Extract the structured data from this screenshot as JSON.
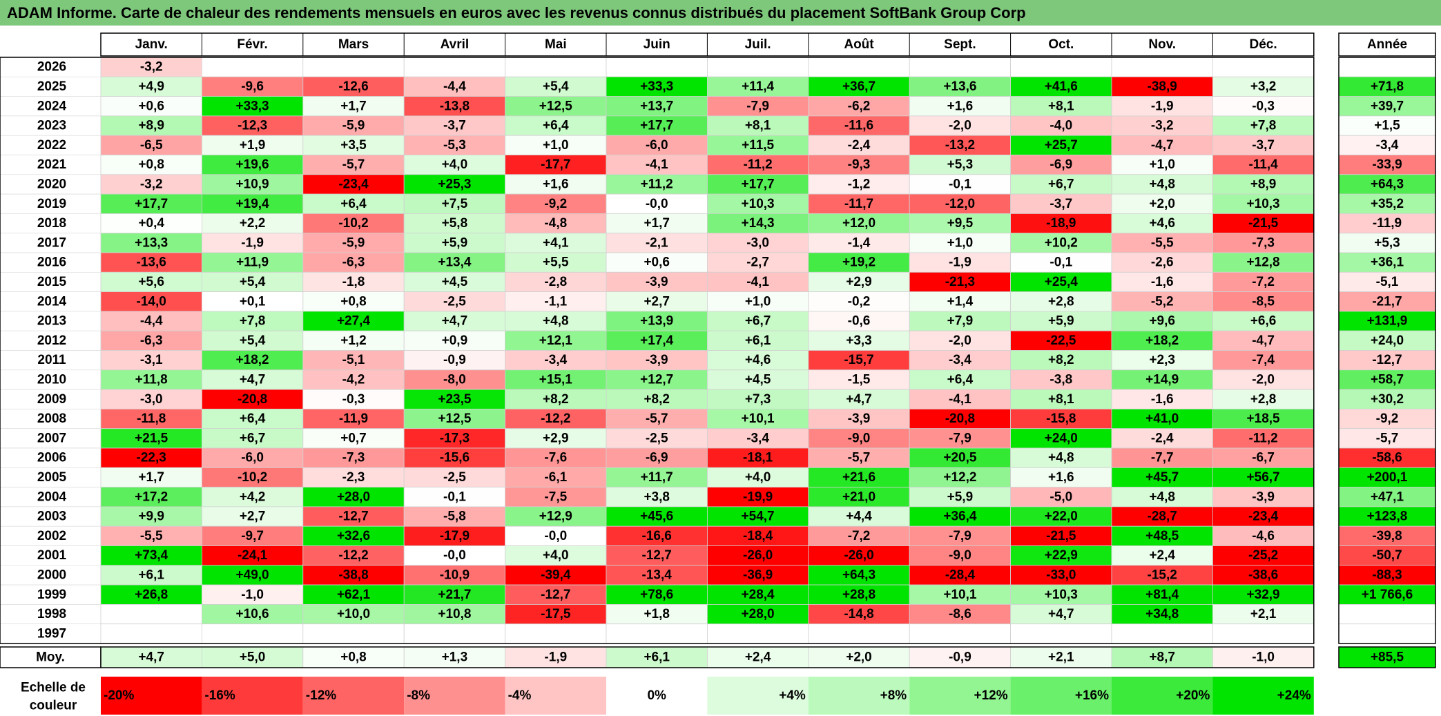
{
  "title": "ADAM Informe. Carte de chaleur des rendements mensuels en euros avec les revenus connus distribués du placement SoftBank Group Corp",
  "chart_data": {
    "type": "heatmap",
    "months": [
      "Janv.",
      "Févr.",
      "Mars",
      "Avril",
      "Mai",
      "Juin",
      "Juil.",
      "Août",
      "Sept.",
      "Oct.",
      "Nov.",
      "Déc."
    ],
    "year_header": "Année",
    "avg_label": "Moy.",
    "scale_label": [
      "Echelle de",
      "couleur"
    ],
    "rows": [
      {
        "year": "2026",
        "values": [
          "-3,2",
          "",
          "",
          "",
          "",
          "",
          "",
          "",
          "",
          "",
          "",
          ""
        ],
        "annual": ""
      },
      {
        "year": "2025",
        "values": [
          "+4,9",
          "-9,6",
          "-12,6",
          "-4,4",
          "+5,4",
          "+33,3",
          "+11,4",
          "+36,7",
          "+13,6",
          "+41,6",
          "-38,9",
          "+3,2"
        ],
        "annual": "+71,8"
      },
      {
        "year": "2024",
        "values": [
          "+0,6",
          "+33,3",
          "+1,7",
          "-13,8",
          "+12,5",
          "+13,7",
          "-7,9",
          "-6,2",
          "+1,6",
          "+8,1",
          "-1,9",
          "-0,3"
        ],
        "annual": "+39,7"
      },
      {
        "year": "2023",
        "values": [
          "+8,9",
          "-12,3",
          "-5,9",
          "-3,7",
          "+6,4",
          "+17,7",
          "+8,1",
          "-11,6",
          "-2,0",
          "-4,0",
          "-3,2",
          "+7,8"
        ],
        "annual": "+1,5"
      },
      {
        "year": "2022",
        "values": [
          "-6,5",
          "+1,9",
          "+3,5",
          "-5,3",
          "+1,0",
          "-6,0",
          "+11,5",
          "-2,4",
          "-13,2",
          "+25,7",
          "-4,7",
          "-3,7"
        ],
        "annual": "-3,4"
      },
      {
        "year": "2021",
        "values": [
          "+0,8",
          "+19,6",
          "-5,7",
          "+4,0",
          "-17,7",
          "-4,1",
          "-11,2",
          "-9,3",
          "+5,3",
          "-6,9",
          "+1,0",
          "-11,4"
        ],
        "annual": "-33,9"
      },
      {
        "year": "2020",
        "values": [
          "-3,2",
          "+10,9",
          "-23,4",
          "+25,3",
          "+1,6",
          "+11,2",
          "+17,7",
          "-1,2",
          "-0,1",
          "+6,7",
          "+4,8",
          "+8,9"
        ],
        "annual": "+64,3"
      },
      {
        "year": "2019",
        "values": [
          "+17,7",
          "+19,4",
          "+6,4",
          "+7,5",
          "-9,2",
          "-0,0",
          "+10,3",
          "-11,7",
          "-12,0",
          "-3,7",
          "+2,0",
          "+10,3"
        ],
        "annual": "+35,2"
      },
      {
        "year": "2018",
        "values": [
          "+0,4",
          "+2,2",
          "-10,2",
          "+5,8",
          "-4,8",
          "+1,7",
          "+14,3",
          "+12,0",
          "+9,5",
          "-18,9",
          "+4,6",
          "-21,5"
        ],
        "annual": "-11,9"
      },
      {
        "year": "2017",
        "values": [
          "+13,3",
          "-1,9",
          "-5,9",
          "+5,9",
          "+4,1",
          "-2,1",
          "-3,0",
          "-1,4",
          "+1,0",
          "+10,2",
          "-5,5",
          "-7,3"
        ],
        "annual": "+5,3"
      },
      {
        "year": "2016",
        "values": [
          "-13,6",
          "+11,9",
          "-6,3",
          "+13,4",
          "+5,5",
          "+0,6",
          "-2,7",
          "+19,2",
          "-1,9",
          "-0,1",
          "-2,6",
          "+12,8"
        ],
        "annual": "+36,1"
      },
      {
        "year": "2015",
        "values": [
          "+5,6",
          "+5,4",
          "-1,8",
          "+4,5",
          "-2,8",
          "-3,9",
          "-4,1",
          "+2,9",
          "-21,3",
          "+25,4",
          "-1,6",
          "-7,2"
        ],
        "annual": "-5,1"
      },
      {
        "year": "2014",
        "values": [
          "-14,0",
          "+0,1",
          "+0,8",
          "-2,5",
          "-1,1",
          "+2,7",
          "+1,0",
          "-0,2",
          "+1,4",
          "+2,8",
          "-5,2",
          "-8,5"
        ],
        "annual": "-21,7"
      },
      {
        "year": "2013",
        "values": [
          "-4,4",
          "+7,8",
          "+27,4",
          "+4,7",
          "+4,8",
          "+13,9",
          "+6,7",
          "-0,6",
          "+7,9",
          "+5,9",
          "+9,6",
          "+6,6"
        ],
        "annual": "+131,9"
      },
      {
        "year": "2012",
        "values": [
          "-6,3",
          "+5,4",
          "+1,2",
          "+0,9",
          "+12,1",
          "+17,4",
          "+6,1",
          "+3,3",
          "-2,0",
          "-22,5",
          "+18,2",
          "-4,7"
        ],
        "annual": "+24,0"
      },
      {
        "year": "2011",
        "values": [
          "-3,1",
          "+18,2",
          "-5,1",
          "-0,9",
          "-3,4",
          "-3,9",
          "+4,6",
          "-15,7",
          "-3,4",
          "+8,2",
          "+2,3",
          "-7,4"
        ],
        "annual": "-12,7"
      },
      {
        "year": "2010",
        "values": [
          "+11,8",
          "+4,7",
          "-4,2",
          "-8,0",
          "+15,1",
          "+12,7",
          "+4,5",
          "-1,5",
          "+6,4",
          "-3,8",
          "+14,9",
          "-2,0"
        ],
        "annual": "+58,7"
      },
      {
        "year": "2009",
        "values": [
          "-3,0",
          "-20,8",
          "-0,3",
          "+23,5",
          "+8,2",
          "+8,2",
          "+7,3",
          "+4,7",
          "-4,1",
          "+8,1",
          "-1,6",
          "+2,8"
        ],
        "annual": "+30,2"
      },
      {
        "year": "2008",
        "values": [
          "-11,8",
          "+6,4",
          "-11,9",
          "+12,5",
          "-12,2",
          "-5,7",
          "+10,1",
          "-3,9",
          "-20,8",
          "-15,8",
          "+41,0",
          "+18,5"
        ],
        "annual": "-9,2"
      },
      {
        "year": "2007",
        "values": [
          "+21,5",
          "+6,7",
          "+0,7",
          "-17,3",
          "+2,9",
          "-2,5",
          "-3,4",
          "-9,0",
          "-7,9",
          "+24,0",
          "-2,4",
          "-11,2"
        ],
        "annual": "-5,7"
      },
      {
        "year": "2006",
        "values": [
          "-22,3",
          "-6,0",
          "-7,3",
          "-15,6",
          "-7,6",
          "-6,9",
          "-18,1",
          "-5,7",
          "+20,5",
          "+4,8",
          "-7,7",
          "-6,7"
        ],
        "annual": "-58,6"
      },
      {
        "year": "2005",
        "values": [
          "+1,7",
          "-10,2",
          "-2,3",
          "-2,5",
          "-6,1",
          "+11,7",
          "+4,0",
          "+21,6",
          "+12,2",
          "+1,6",
          "+45,7",
          "+56,7"
        ],
        "annual": "+200,1"
      },
      {
        "year": "2004",
        "values": [
          "+17,2",
          "+4,2",
          "+28,0",
          "-0,1",
          "-7,5",
          "+3,8",
          "-19,9",
          "+21,0",
          "+5,9",
          "-5,0",
          "+4,8",
          "-3,9"
        ],
        "annual": "+47,1"
      },
      {
        "year": "2003",
        "values": [
          "+9,9",
          "+2,7",
          "-12,7",
          "-5,8",
          "+12,9",
          "+45,6",
          "+54,7",
          "+4,4",
          "+36,4",
          "+22,0",
          "-28,7",
          "-23,4"
        ],
        "annual": "+123,8"
      },
      {
        "year": "2002",
        "values": [
          "-5,5",
          "-9,7",
          "+32,6",
          "-17,9",
          "-0,0",
          "-16,6",
          "-18,4",
          "-7,2",
          "-7,9",
          "-21,5",
          "+48,5",
          "-4,6"
        ],
        "annual": "-39,8"
      },
      {
        "year": "2001",
        "values": [
          "+73,4",
          "-24,1",
          "-12,2",
          "-0,0",
          "+4,0",
          "-12,7",
          "-26,0",
          "-26,0",
          "-9,0",
          "+22,9",
          "+2,4",
          "-25,2"
        ],
        "annual": "-50,7"
      },
      {
        "year": "2000",
        "values": [
          "+6,1",
          "+49,0",
          "-38,8",
          "-10,9",
          "-39,4",
          "-13,4",
          "-36,9",
          "+64,3",
          "-28,4",
          "-33,0",
          "-15,2",
          "-38,6"
        ],
        "annual": "-88,3"
      },
      {
        "year": "1999",
        "values": [
          "+26,8",
          "-1,0",
          "+62,1",
          "+21,7",
          "-12,7",
          "+78,6",
          "+28,4",
          "+28,8",
          "+10,1",
          "+10,3",
          "+81,4",
          "+32,9"
        ],
        "annual": "+1 766,6"
      },
      {
        "year": "1998",
        "values": [
          "",
          "+10,6",
          "+10,0",
          "+10,8",
          "-17,5",
          "+1,8",
          "+28,0",
          "-14,8",
          "-8,6",
          "+4,7",
          "+34,8",
          "+2,1"
        ],
        "annual": ""
      },
      {
        "year": "1997",
        "values": [
          "",
          "",
          "",
          "",
          "",
          "",
          "",
          "",
          "",
          "",
          "",
          ""
        ],
        "annual": ""
      }
    ],
    "averages": [
      "+4,7",
      "+5,0",
      "+0,8",
      "+1,3",
      "-1,9",
      "+6,1",
      "+2,4",
      "+2,0",
      "-0,9",
      "+2,1",
      "+8,7",
      "-1,0"
    ],
    "average_annual": "+85,5",
    "scale": [
      {
        "label": "-20%",
        "value": -20,
        "color": "#ff0000"
      },
      {
        "label": "-16%",
        "value": -16,
        "color": "#ff3a3a"
      },
      {
        "label": "-12%",
        "value": -12,
        "color": "#ff6464"
      },
      {
        "label": "-8%",
        "value": -8,
        "color": "#ff9090"
      },
      {
        "label": "-4%",
        "value": -4,
        "color": "#ffc4c4"
      },
      {
        "label": "0%",
        "value": 0,
        "color": "#ffffff"
      },
      {
        "label": "+4%",
        "value": 4,
        "color": "#ddfbdd"
      },
      {
        "label": "+8%",
        "value": 8,
        "color": "#bcf9bc"
      },
      {
        "label": "+12%",
        "value": 12,
        "color": "#92f592"
      },
      {
        "label": "+16%",
        "value": 16,
        "color": "#6af06a"
      },
      {
        "label": "+20%",
        "value": 20,
        "color": "#3bea3b"
      },
      {
        "label": "+24%",
        "value": 24,
        "color": "#00e400"
      }
    ]
  }
}
